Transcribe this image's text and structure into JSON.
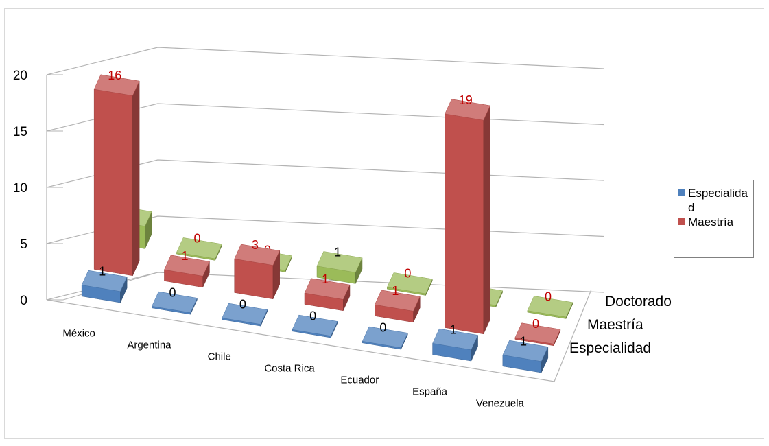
{
  "chart_data": {
    "type": "bar3d",
    "categories": [
      "México",
      "Argentina",
      "Chile",
      "Costa Rica",
      "Ecuador",
      "España",
      "Venezuela"
    ],
    "series_axis_labels": [
      "Doctorado",
      "Maestría",
      "Especialidad"
    ],
    "series": [
      {
        "name": "Especialidad",
        "color": "#4f81bd",
        "values": [
          1,
          0,
          0,
          0,
          0,
          1,
          1
        ],
        "labels": [
          "1",
          "0",
          "0",
          "0",
          "0",
          "1",
          "1"
        ]
      },
      {
        "name": "Maestría",
        "color": "#c0504d",
        "values": [
          16,
          1,
          3,
          1,
          1,
          19,
          0
        ],
        "labels": [
          "16",
          "1",
          "3",
          "1",
          "1",
          "19",
          "0"
        ]
      },
      {
        "name": "Doctorado",
        "color": "#9bbb59",
        "values": [
          2,
          0,
          0,
          1,
          0,
          0,
          0
        ],
        "labels": [
          "2",
          "0",
          "0",
          "1",
          "0",
          "0",
          "0"
        ]
      }
    ],
    "zlim": [
      0,
      20
    ],
    "z_ticks": [
      "0",
      "5",
      "10",
      "15",
      "20"
    ],
    "grid": true,
    "legend_position": "right",
    "legend": [
      {
        "label": "Especialidad",
        "color": "#4f81bd"
      },
      {
        "label": "Maestría",
        "color": "#c0504d"
      }
    ]
  }
}
